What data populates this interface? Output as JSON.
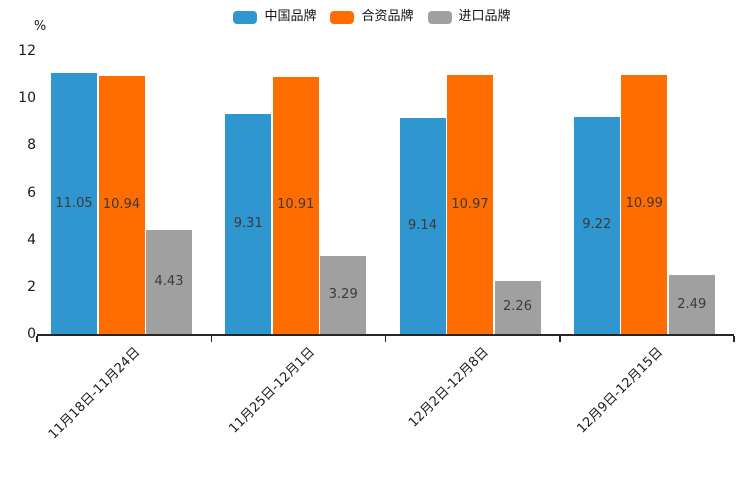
{
  "chart_data": {
    "type": "bar",
    "title": "",
    "xlabel": "",
    "ylabel": "%",
    "categories": [
      "11月18日-11月24日",
      "11月25日-12月1日",
      "12月2日-12月8日",
      "12月9日-12月15日"
    ],
    "series": [
      {
        "name": "中国品牌",
        "color": "#2F96D0",
        "values": [
          11.05,
          9.31,
          9.14,
          9.22
        ]
      },
      {
        "name": "合资品牌",
        "color": "#FF6D00",
        "values": [
          10.94,
          10.91,
          10.97,
          10.99
        ]
      },
      {
        "name": "进口品牌",
        "color": "#A0A0A0",
        "values": [
          4.43,
          3.29,
          2.26,
          2.49
        ]
      }
    ],
    "ylim": [
      0,
      12
    ],
    "yticks": [
      0,
      2,
      4,
      6,
      8,
      10,
      12
    ],
    "value_labels": true,
    "value_label_color": "#3a3a3a",
    "legend_position": "top-center",
    "grid": false,
    "background": "#ffffff"
  }
}
